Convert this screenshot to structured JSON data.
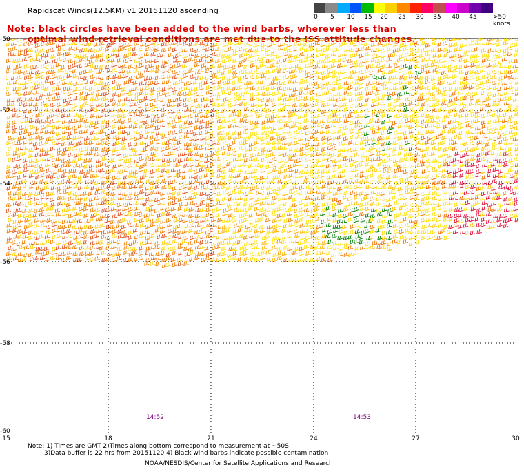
{
  "title": "Rapidscat Winds(12.5KM) v1 20151120 ascending",
  "legend": {
    "colors": [
      "#444444",
      "#8a8a8a",
      "#00aaff",
      "#0055ff",
      "#00bb00",
      "#ffff00",
      "#ffd000",
      "#ff8800",
      "#ff2200",
      "#ff0066",
      "#c05050",
      "#ff00ff",
      "#cc00cc",
      "#7000aa",
      "#400080"
    ],
    "labels": [
      "0",
      "5",
      "10",
      "15",
      "20",
      "25",
      "30",
      "35",
      "40",
      "45",
      ">50 knots"
    ]
  },
  "notes": {
    "line1": "Note: black circles have been added to the wind barbs, wherever less than",
    "line2": "optimal wind retrieval conditions are met due to the ISS attitude changes."
  },
  "axes": {
    "lat_labels": [
      "-50",
      "-52",
      "-54",
      "-56",
      "-58",
      "-60"
    ],
    "lon_labels": [
      "15",
      "18",
      "21",
      "24",
      "27",
      "30"
    ]
  },
  "times": [
    "14:52",
    "14:53"
  ],
  "footer": {
    "line1": "Note: 1) Times are GMT 2)Times along bottom correspond to measurement at ~50S",
    "line2": "3)Data buffer is 22 hrs from 20151120 4) Black wind barbs indicate possible contamination",
    "line3": "NOAA/NESDIS/Center for Satellite Applications and Research"
  }
}
